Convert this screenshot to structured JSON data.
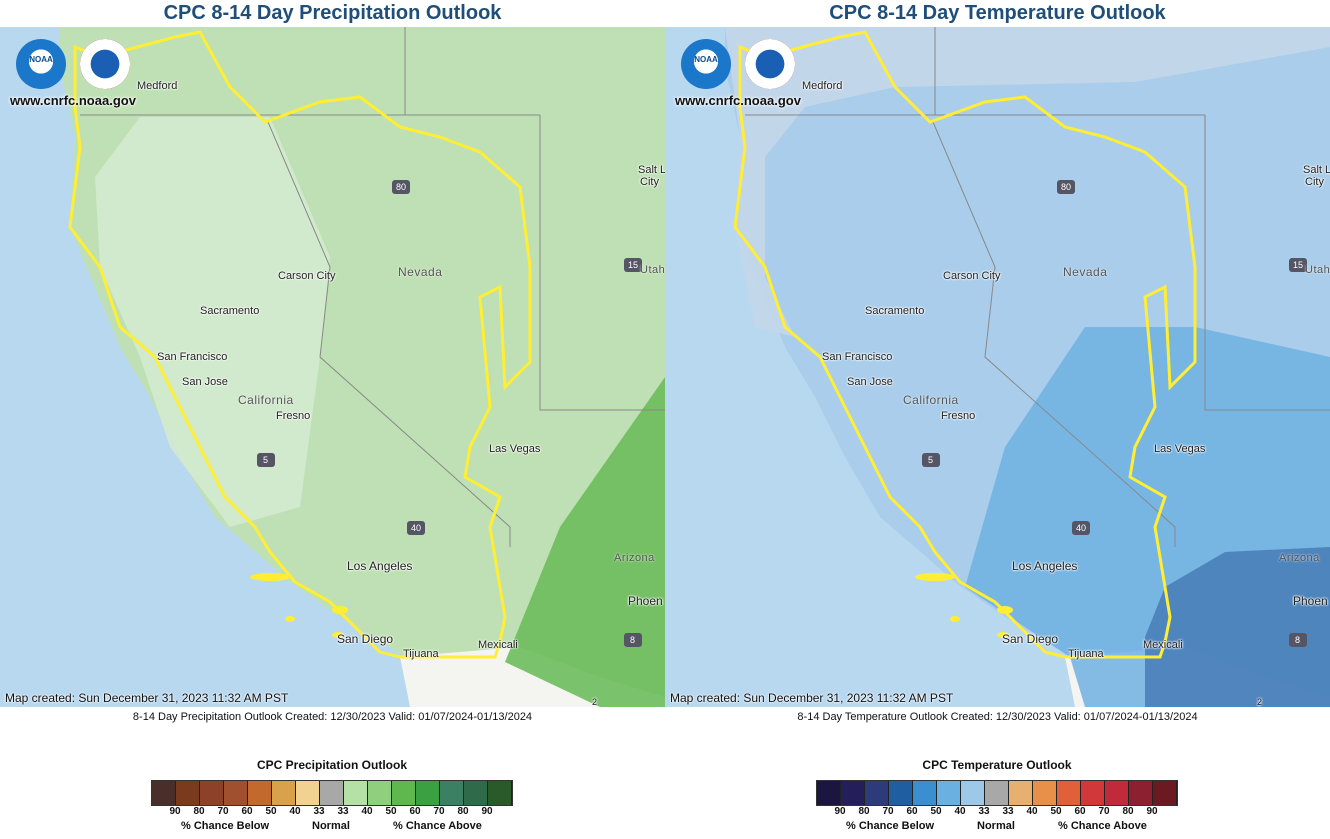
{
  "precip": {
    "title": "CPC 8-14 Day Precipitation Outlook",
    "website": "www.cnrfc.noaa.gov",
    "map_created": "Map created: Sun December 31, 2023 11:32 AM PST",
    "caption": "8-14 Day Precipitation Outlook Created: 12/30/2023 Valid: 01/07/2024-01/13/2024",
    "legend_title": "CPC Precipitation Outlook",
    "legend_colors": [
      "#4a2e2a",
      "#7a3a1e",
      "#8c4128",
      "#a0502e",
      "#c26a2e",
      "#d9a14a",
      "#f2d290",
      "#a8a8a8",
      "#b5e0a6",
      "#8fd07e",
      "#5fb84e",
      "#3aa142",
      "#3b8062",
      "#2f6b4a",
      "#2a5a2a"
    ],
    "legend_ticks": [
      "90",
      "80",
      "70",
      "60",
      "50",
      "40",
      "33",
      "33",
      "40",
      "50",
      "60",
      "70",
      "80",
      "90"
    ],
    "below_label": "% Chance Below",
    "normal_label": "Normal",
    "above_label": "% Chance Above",
    "colors": {
      "base": "#bfe0b4",
      "light": "#d9ecd2",
      "mid": "#a9d59a",
      "strong": "#5fb84e",
      "ocean": "#b8d8f0"
    }
  },
  "temp": {
    "title": "CPC 8-14 Day Temperature Outlook",
    "website": "www.cnrfc.noaa.gov",
    "map_created": "Map created: Sun December 31, 2023 11:32 AM PST",
    "caption": "8-14 Day Temperature Outlook Created: 12/30/2023 Valid: 01/07/2024-01/13/2024",
    "legend_title": "CPC Temperature Outlook",
    "legend_colors": [
      "#1a1640",
      "#241f5a",
      "#2e3b7a",
      "#1f5fa0",
      "#3a8fd0",
      "#6ab0e0",
      "#9ec8e8",
      "#a8a8a8",
      "#e8b070",
      "#e8904a",
      "#e0603a",
      "#d0383a",
      "#c02a3a",
      "#8c2030",
      "#6a1a20"
    ],
    "legend_ticks": [
      "90",
      "80",
      "70",
      "60",
      "50",
      "40",
      "33",
      "33",
      "40",
      "50",
      "60",
      "70",
      "80",
      "90"
    ],
    "below_label": "% Chance Below",
    "normal_label": "Normal",
    "above_label": "% Chance Above",
    "colors": {
      "base": "#a9cdea",
      "light": "#c4d7ea",
      "mid": "#7ab6e2",
      "strong": "#4a80b8",
      "ocean": "#b8d8f0"
    }
  },
  "places": {
    "medford": "Medford",
    "salt_lake": "Salt L",
    "city": "City",
    "carson_city": "Carson City",
    "nevada": "Nevada",
    "utah": "Utah",
    "sacramento": "Sacramento",
    "san_francisco": "San Francisco",
    "san_jose": "San Jose",
    "california": "California",
    "fresno": "Fresno",
    "las_vegas": "Las Vegas",
    "arizona": "Arizona",
    "los_angeles": "Los Angeles",
    "phoenix": "Phoen",
    "san_diego": "San Diego",
    "tijuana": "Tijuana",
    "mexicali": "Mexicali",
    "i80": "80",
    "i15": "15",
    "i5": "5",
    "i40": "40",
    "i8": "8",
    "route2": "2"
  },
  "logos": {
    "noaa": "NOAA",
    "nws": "NATIONAL WEATHER SERVICE"
  }
}
